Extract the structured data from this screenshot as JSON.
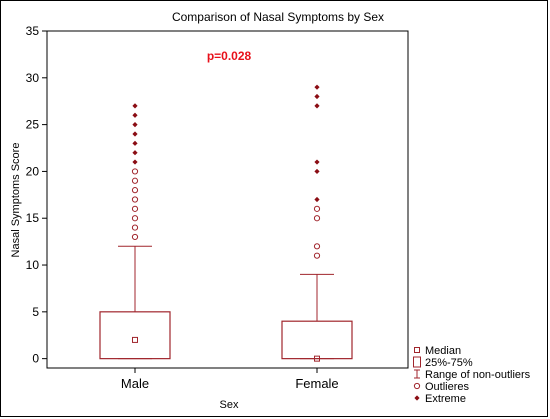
{
  "chart_data": {
    "type": "box",
    "title": "Comparison of Nasal Symptoms by Sex",
    "xlabel": "Sex",
    "ylabel": "Nasal Symptoms Score",
    "ylim": [
      -1,
      35
    ],
    "yticks": [
      0,
      5,
      10,
      15,
      20,
      25,
      30,
      35
    ],
    "annotation": "p=0.028",
    "categories": [
      "Male",
      "Female"
    ],
    "boxes": [
      {
        "name": "Male",
        "median": 2,
        "q1": 0,
        "q3": 5,
        "whisker_low": 0,
        "whisker_high": 12,
        "outliers": [
          13,
          14,
          15,
          16,
          17,
          18,
          19,
          20
        ],
        "extremes": [
          21,
          22,
          23,
          24,
          25,
          26,
          27
        ]
      },
      {
        "name": "Female",
        "median": 0,
        "q1": 0,
        "q3": 4,
        "whisker_low": 0,
        "whisker_high": 9,
        "outliers": [
          11,
          12,
          15,
          16
        ],
        "extremes": [
          17,
          20,
          21,
          27,
          28,
          29
        ]
      }
    ],
    "legend": {
      "position": "bottom-right",
      "items": [
        {
          "symbol": "median",
          "label": "Median"
        },
        {
          "symbol": "box",
          "label": "25%-75%"
        },
        {
          "symbol": "whisker",
          "label": "Range of non-outliers"
        },
        {
          "symbol": "outlier",
          "label": "Outlieres"
        },
        {
          "symbol": "extreme",
          "label": "Extreme"
        }
      ]
    },
    "colors": {
      "box": "#a0252c",
      "extreme": "#8b0d14",
      "annotation": "#e8101a"
    }
  }
}
